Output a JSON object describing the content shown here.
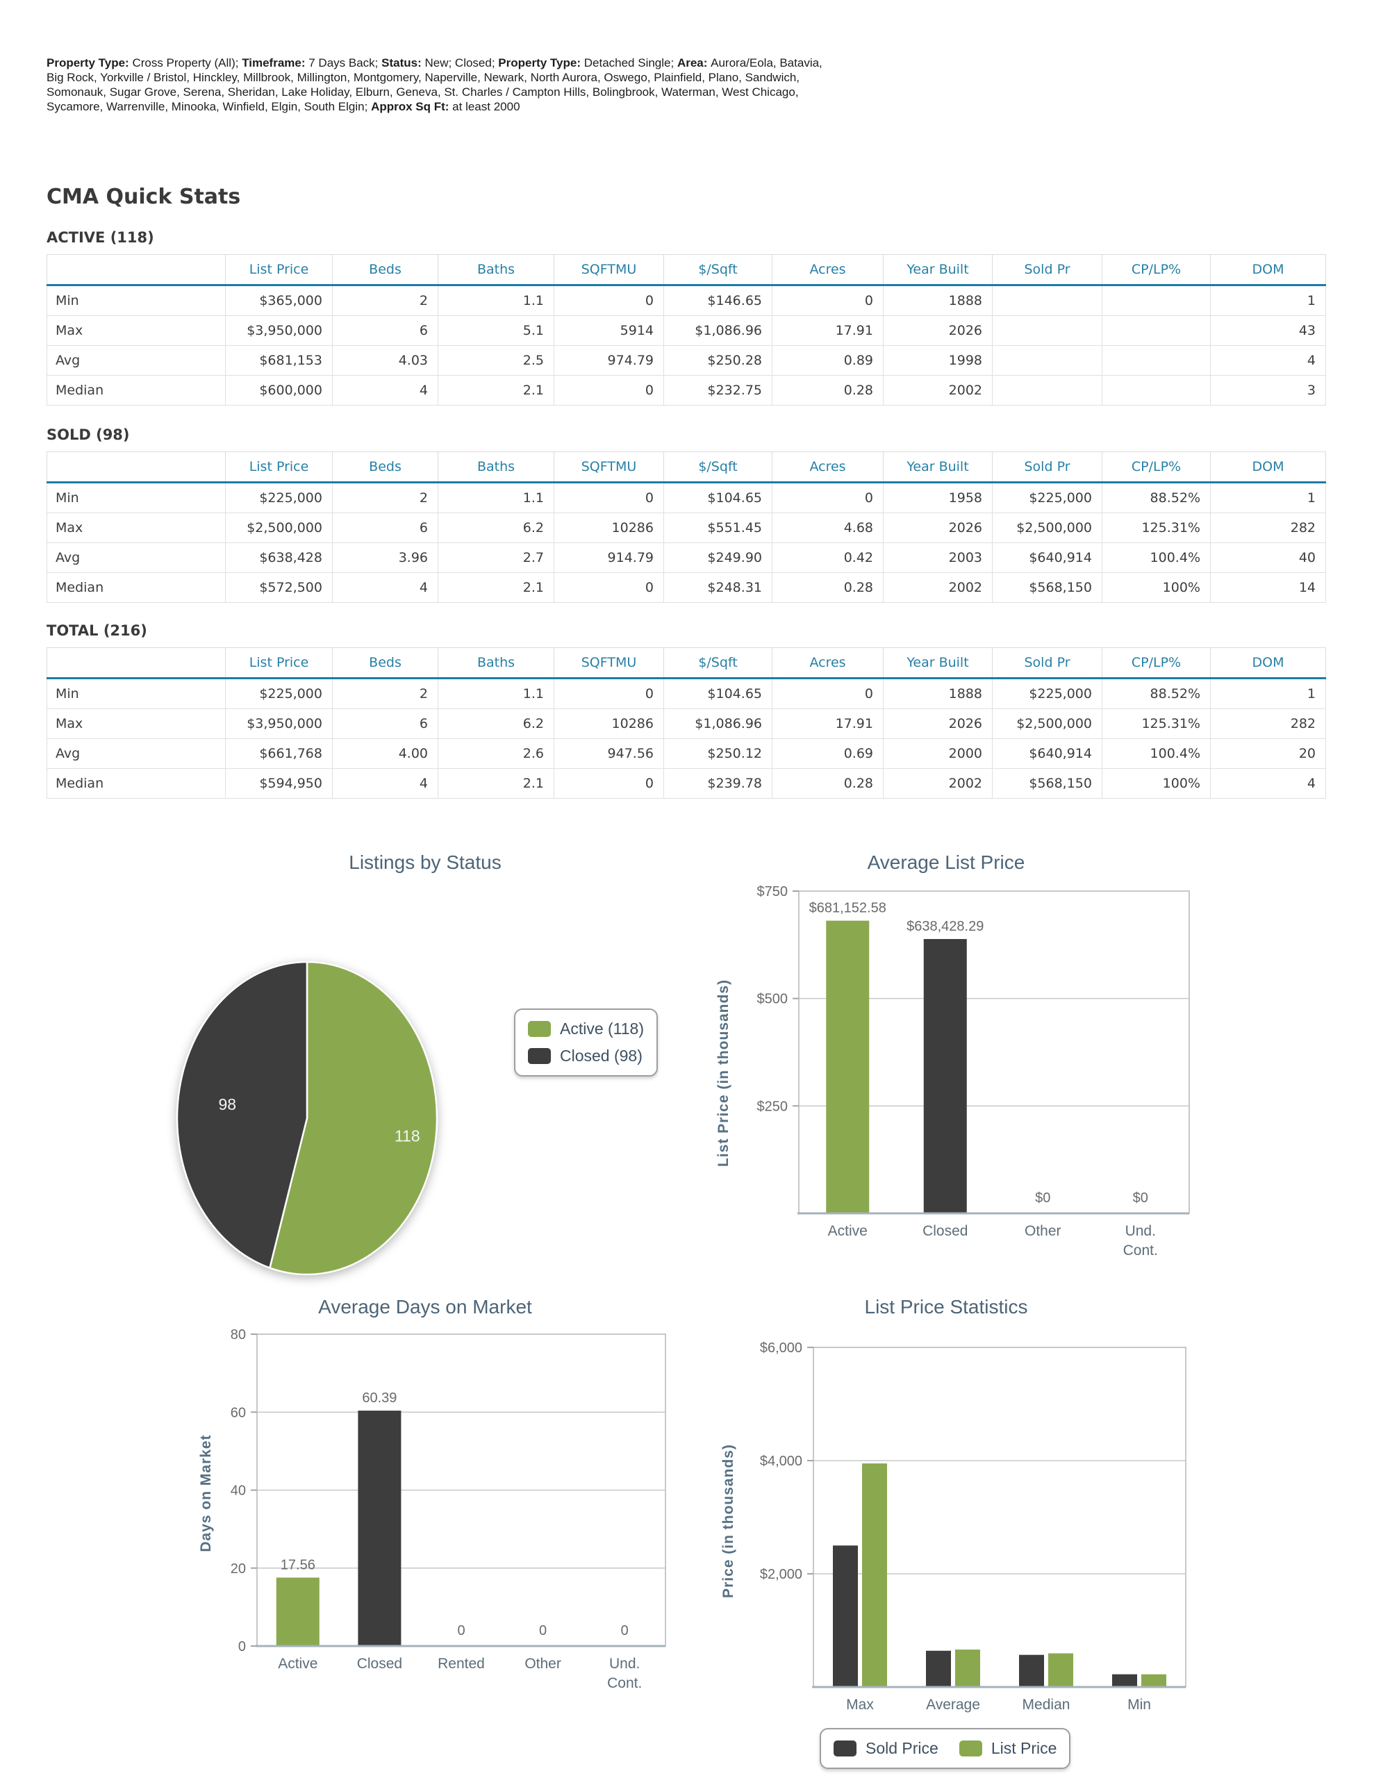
{
  "page_title": "CMA Quick Stats",
  "criteria": {
    "segments": [
      {
        "bold": true,
        "text": "Property Type: "
      },
      {
        "bold": false,
        "text": "Cross Property (All); "
      },
      {
        "bold": true,
        "text": "Timeframe: "
      },
      {
        "bold": false,
        "text": "7 Days Back; "
      },
      {
        "bold": true,
        "text": "Status: "
      },
      {
        "bold": false,
        "text": "New; Closed; "
      },
      {
        "bold": true,
        "text": "Property Type: "
      },
      {
        "bold": false,
        "text": "Detached Single; "
      },
      {
        "bold": true,
        "text": "Area: "
      },
      {
        "bold": false,
        "text": "Aurora/Eola, Batavia, Big Rock, Yorkville / Bristol, Hinckley, Millbrook, Millington, Montgomery, Naperville, Newark, North Aurora, Oswego, Plainfield, Plano, Sandwich, Somonauk, Sugar Grove, Serena, Sheridan, Lake Holiday, Elburn, Geneva, St. Charles / Campton Hills, Bolingbrook, Waterman, West Chicago, Sycamore, Warrenville, Minooka, Winfield, Elgin, South Elgin; "
      },
      {
        "bold": true,
        "text": "Approx Sq Ft: "
      },
      {
        "bold": false,
        "text": "at least 2000"
      }
    ]
  },
  "tables": [
    {
      "heading": "ACTIVE (118)",
      "columns": [
        "",
        "List Price",
        "Beds",
        "Baths",
        "SQFTMU",
        "$/Sqft",
        "Acres",
        "Year Built",
        "Sold Pr",
        "CP/LP%",
        "DOM"
      ],
      "rows": [
        [
          "Min",
          "$365,000",
          "2",
          "1.1",
          "0",
          "$146.65",
          "0",
          "1888",
          "",
          "",
          "1"
        ],
        [
          "Max",
          "$3,950,000",
          "6",
          "5.1",
          "5914",
          "$1,086.96",
          "17.91",
          "2026",
          "",
          "",
          "43"
        ],
        [
          "Avg",
          "$681,153",
          "4.03",
          "2.5",
          "974.79",
          "$250.28",
          "0.89",
          "1998",
          "",
          "",
          "4"
        ],
        [
          "Median",
          "$600,000",
          "4",
          "2.1",
          "0",
          "$232.75",
          "0.28",
          "2002",
          "",
          "",
          "3"
        ]
      ]
    },
    {
      "heading": "SOLD (98)",
      "columns": [
        "",
        "List Price",
        "Beds",
        "Baths",
        "SQFTMU",
        "$/Sqft",
        "Acres",
        "Year Built",
        "Sold Pr",
        "CP/LP%",
        "DOM"
      ],
      "rows": [
        [
          "Min",
          "$225,000",
          "2",
          "1.1",
          "0",
          "$104.65",
          "0",
          "1958",
          "$225,000",
          "88.52%",
          "1"
        ],
        [
          "Max",
          "$2,500,000",
          "6",
          "6.2",
          "10286",
          "$551.45",
          "4.68",
          "2026",
          "$2,500,000",
          "125.31%",
          "282"
        ],
        [
          "Avg",
          "$638,428",
          "3.96",
          "2.7",
          "914.79",
          "$249.90",
          "0.42",
          "2003",
          "$640,914",
          "100.4%",
          "40"
        ],
        [
          "Median",
          "$572,500",
          "4",
          "2.1",
          "0",
          "$248.31",
          "0.28",
          "2002",
          "$568,150",
          "100%",
          "14"
        ]
      ]
    },
    {
      "heading": "TOTAL (216)",
      "columns": [
        "",
        "List Price",
        "Beds",
        "Baths",
        "SQFTMU",
        "$/Sqft",
        "Acres",
        "Year Built",
        "Sold Pr",
        "CP/LP%",
        "DOM"
      ],
      "rows": [
        [
          "Min",
          "$225,000",
          "2",
          "1.1",
          "0",
          "$104.65",
          "0",
          "1888",
          "$225,000",
          "88.52%",
          "1"
        ],
        [
          "Max",
          "$3,950,000",
          "6",
          "6.2",
          "10286",
          "$1,086.96",
          "17.91",
          "2026",
          "$2,500,000",
          "125.31%",
          "282"
        ],
        [
          "Avg",
          "$661,768",
          "4.00",
          "2.6",
          "947.56",
          "$250.12",
          "0.69",
          "2000",
          "$640,914",
          "100.4%",
          "20"
        ],
        [
          "Median",
          "$594,950",
          "4",
          "2.1",
          "0",
          "$239.78",
          "0.28",
          "2002",
          "$568,150",
          "100%",
          "4"
        ]
      ]
    }
  ],
  "colors": {
    "green": "#8AA94E",
    "dark": "#3D3D3D",
    "teal_header": "#2680A6",
    "header_underline": "#1B7CA6",
    "title_slate": "#4D6477",
    "tick_gray": "#6A6A6A",
    "category_slate": "#5C6D79",
    "plot_border": "#B5B5B5",
    "axis_line": "#A6B3BB",
    "grid_line": "#C8C8C8",
    "pie_label": "#F4F4F4"
  },
  "chart_data": [
    {
      "type": "pie",
      "title": "Listings by Status",
      "labels": [
        "Active",
        "Closed"
      ],
      "values": [
        118,
        98
      ],
      "slice_labels": [
        "118",
        "98"
      ],
      "slice_colors": [
        "green",
        "dark"
      ],
      "legend": [
        "Active (118)",
        "Closed (98)"
      ],
      "legend_position": "right"
    },
    {
      "type": "bar",
      "title": "Average List Price",
      "ylabel": "List Price (in thousands)",
      "categories": [
        "Active",
        "Closed",
        "Other",
        "Und. Cont."
      ],
      "values": [
        681.15258,
        638.42829,
        0,
        0
      ],
      "bar_labels": [
        "$681,152.58",
        "$638,428.29",
        "$0",
        "$0"
      ],
      "bar_colors": [
        "green",
        "dark",
        "none",
        "none"
      ],
      "ylim": [
        0,
        750
      ],
      "yticks": [
        250,
        500,
        750
      ],
      "ytick_labels": [
        "$250",
        "$500",
        "$750"
      ],
      "grid": true,
      "note": "values are list price in thousands of dollars"
    },
    {
      "type": "bar",
      "title": "Average Days on Market",
      "ylabel": "Days on Market",
      "categories": [
        "Active",
        "Closed",
        "Rented",
        "Other",
        "Und. Cont."
      ],
      "values": [
        17.56,
        60.39,
        0,
        0,
        0
      ],
      "bar_labels": [
        "17.56",
        "60.39",
        "0",
        "0",
        "0"
      ],
      "bar_colors": [
        "green",
        "dark",
        "none",
        "none",
        "none"
      ],
      "ylim": [
        0,
        80
      ],
      "yticks": [
        0,
        20,
        40,
        60,
        80
      ],
      "ytick_labels": [
        "0",
        "20",
        "40",
        "60",
        "80"
      ],
      "grid": true
    },
    {
      "type": "bar",
      "title": "List Price Statistics",
      "ylabel": "Price (in thousands)",
      "categories": [
        "Max",
        "Average",
        "Median",
        "Min"
      ],
      "series": [
        {
          "name": "Sold Price",
          "color": "dark",
          "values": [
            2500,
            640.914,
            568.15,
            225
          ]
        },
        {
          "name": "List Price",
          "color": "green",
          "values": [
            3950,
            661.768,
            594.95,
            225
          ]
        }
      ],
      "ylim": [
        0,
        6000
      ],
      "yticks": [
        2000,
        4000,
        6000
      ],
      "ytick_labels": [
        "$2,000",
        "$4,000",
        "$6,000"
      ],
      "grid": true,
      "legend": [
        "Sold Price",
        "List Price"
      ],
      "legend_position": "bottom",
      "note": "values are price in thousands of dollars"
    }
  ]
}
